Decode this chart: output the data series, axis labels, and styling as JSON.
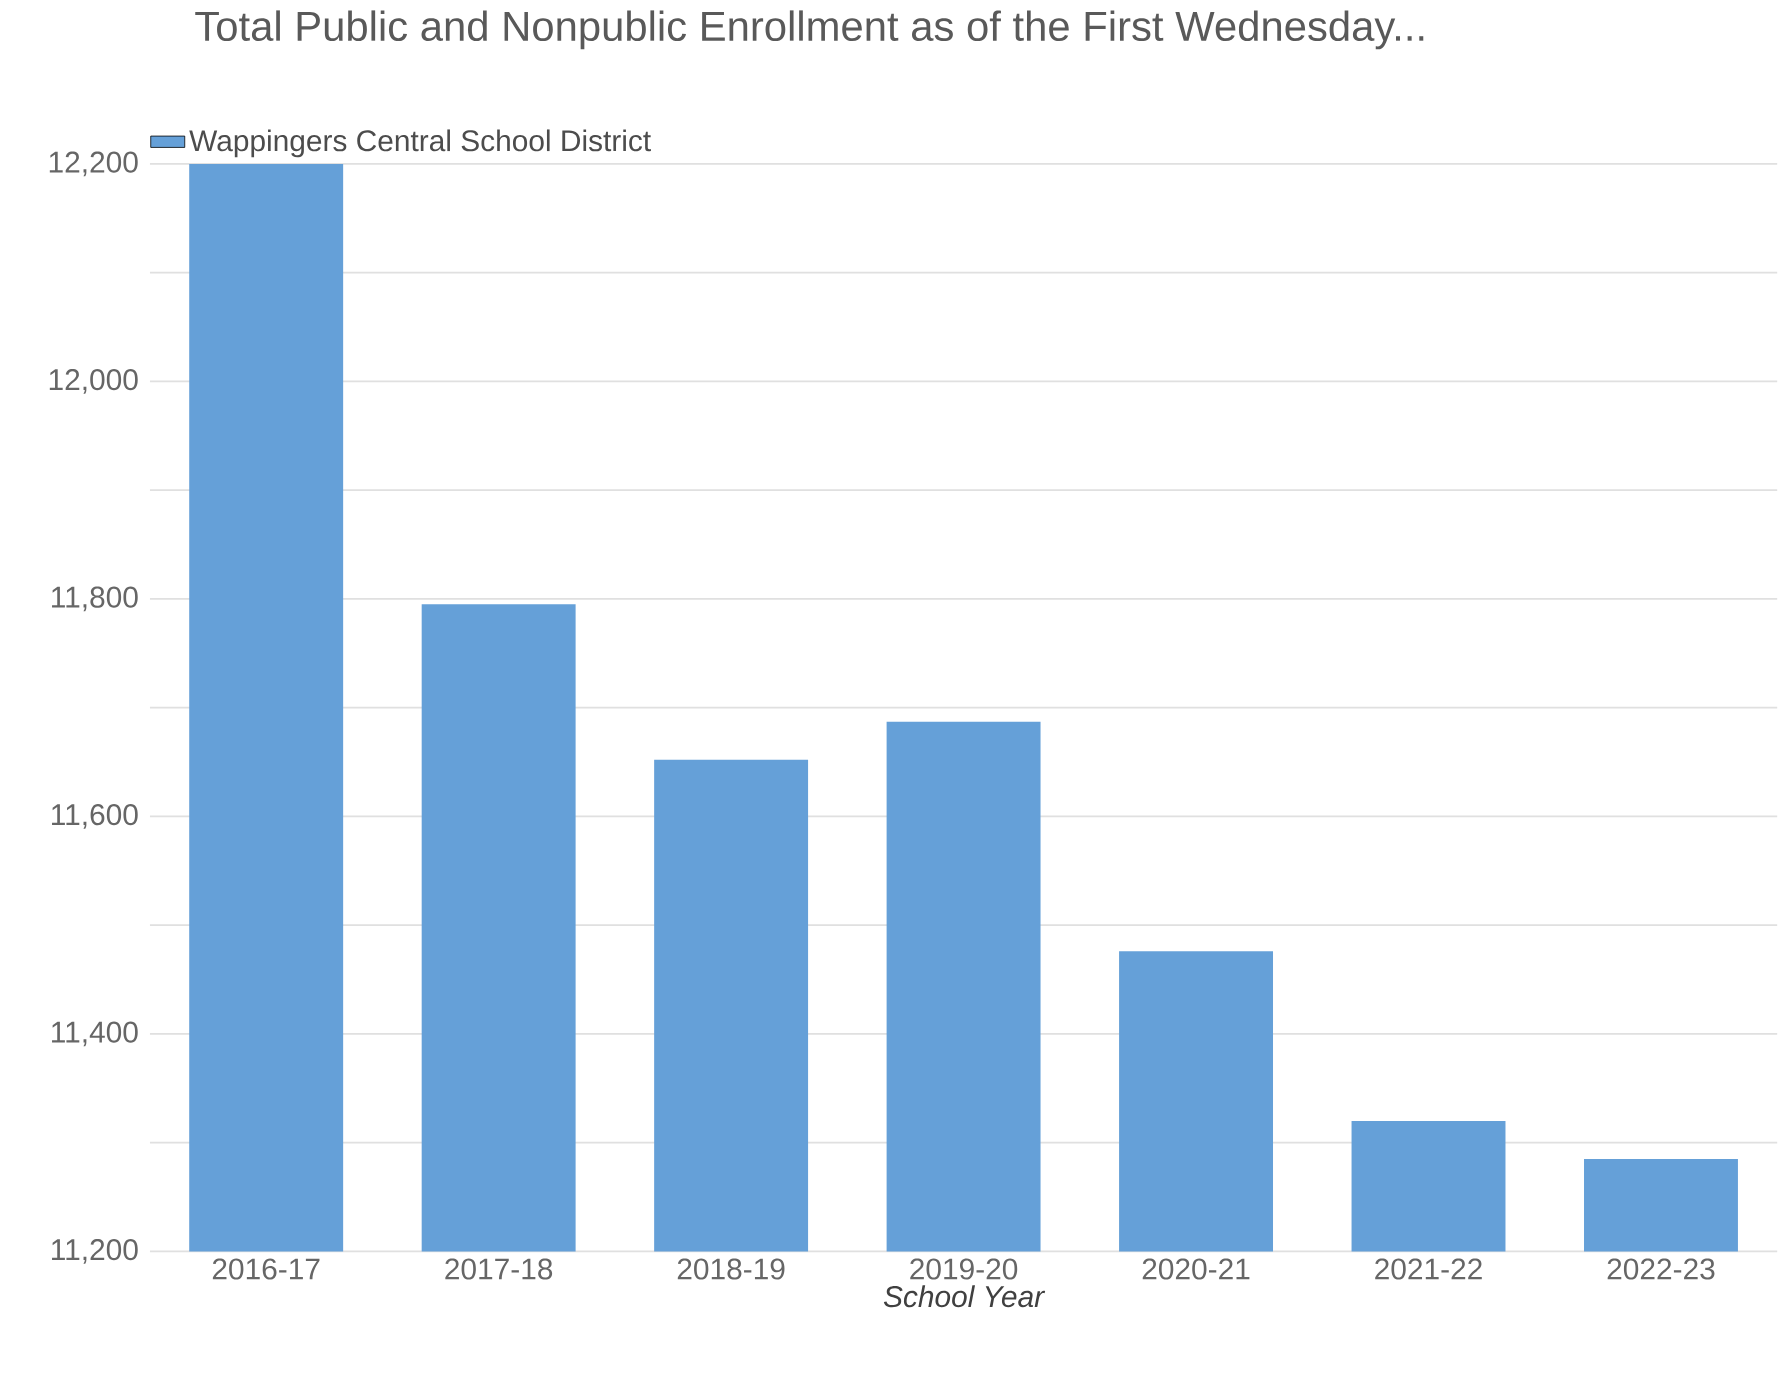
{
  "chart_data": {
    "type": "bar",
    "title": "Total Public and Nonpublic Enrollment as of the First Wednesday...",
    "xlabel": "School Year",
    "categories": [
      "2016-17",
      "2017-18",
      "2018-19",
      "2019-20",
      "2020-21",
      "2021-22",
      "2022-23"
    ],
    "series": [
      {
        "name": "Wappingers Central School District",
        "color": "#65a0d8",
        "values": [
          12200,
          11795,
          11652,
          11687,
          11476,
          11320,
          11285
        ]
      }
    ],
    "ylim": [
      11200,
      12200
    ],
    "yticks": [
      {
        "value": 11200,
        "label": "11,200"
      },
      {
        "value": 11300,
        "label": null
      },
      {
        "value": 11400,
        "label": "11,400"
      },
      {
        "value": 11500,
        "label": null
      },
      {
        "value": 11600,
        "label": "11,600"
      },
      {
        "value": 11700,
        "label": null
      },
      {
        "value": 11800,
        "label": "11,800"
      },
      {
        "value": 11900,
        "label": null
      },
      {
        "value": 12000,
        "label": "12,000"
      },
      {
        "value": 12100,
        "label": null
      },
      {
        "value": 12200,
        "label": "12,200"
      }
    ],
    "grid": "y",
    "legend": "top left"
  }
}
